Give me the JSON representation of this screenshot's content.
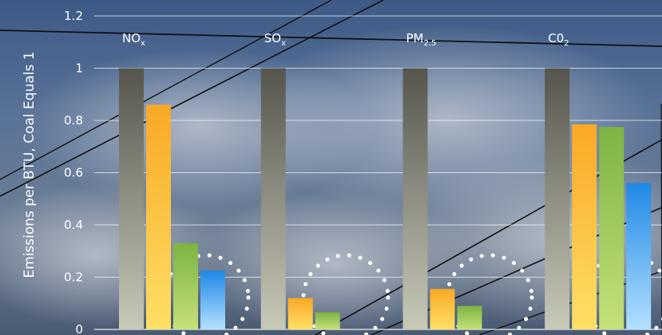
{
  "chart_data": {
    "type": "bar",
    "categories": [
      {
        "main": "NO",
        "sub": "x"
      },
      {
        "main": "SO",
        "sub": "x"
      },
      {
        "main": "PM",
        "sub": "2.5"
      },
      {
        "main": "C0",
        "sub": "2"
      }
    ],
    "series": [
      {
        "color": "#55554d",
        "values": [
          1.0,
          1.0,
          1.0,
          1.0
        ]
      },
      {
        "color": "#f9a825",
        "values": [
          0.86,
          0.12,
          0.155,
          0.785
        ]
      },
      {
        "color": "#7cb342",
        "values": [
          0.33,
          0.065,
          0.09,
          0.775
        ]
      },
      {
        "color": "#1e88e5",
        "values": [
          0.225,
          0.0,
          0.0,
          0.56
        ]
      }
    ],
    "ylabel": "Emissions per BTU, Coal Equals 1",
    "ylim": [
      0,
      1.2
    ],
    "yticks": [
      "0",
      "0.2",
      "0.4",
      "0.6",
      "0.8",
      "1",
      "1.2"
    ],
    "grid": true,
    "background": "sky-with-power-lines"
  }
}
